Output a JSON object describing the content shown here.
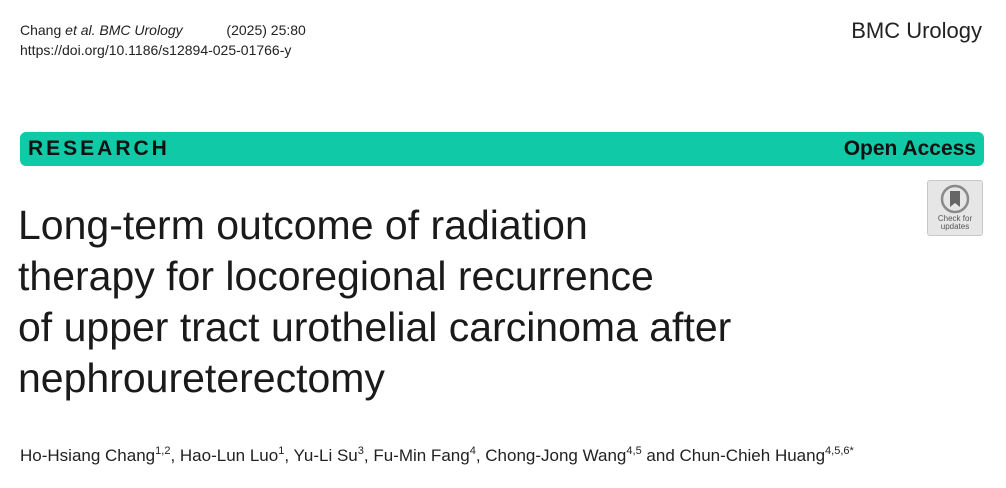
{
  "header": {
    "authors_short": "Chang",
    "et_al_journal": "et al. BMC Urology",
    "year_volume": "(2025) 25:80",
    "doi": "https://doi.org/10.1186/s12894-025-01766-y",
    "journal_name": "BMC Urology"
  },
  "band": {
    "article_type": "RESEARCH",
    "access": "Open Access",
    "color": "#10c9a6"
  },
  "check_updates": {
    "label_line1": "Check for",
    "label_line2": "updates",
    "icon": "bookmark-check-icon"
  },
  "title_lines": [
    "Long-term outcome of radiation",
    "therapy for locoregional recurrence",
    "of upper tract urothelial carcinoma after",
    "nephroureterectomy"
  ],
  "authors": [
    {
      "name": "Ho-Hsiang Chang",
      "aff": "1,2",
      "sep": ", "
    },
    {
      "name": "Hao-Lun Luo",
      "aff": "1",
      "sep": ", "
    },
    {
      "name": "Yu-Li Su",
      "aff": "3",
      "sep": ", "
    },
    {
      "name": "Fu-Min Fang",
      "aff": "4",
      "sep": ", "
    },
    {
      "name": "Chong-Jong Wang",
      "aff": "4,5",
      "sep": " and "
    },
    {
      "name": "Chun-Chieh Huang",
      "aff": "4,5,6*",
      "sep": ""
    }
  ]
}
